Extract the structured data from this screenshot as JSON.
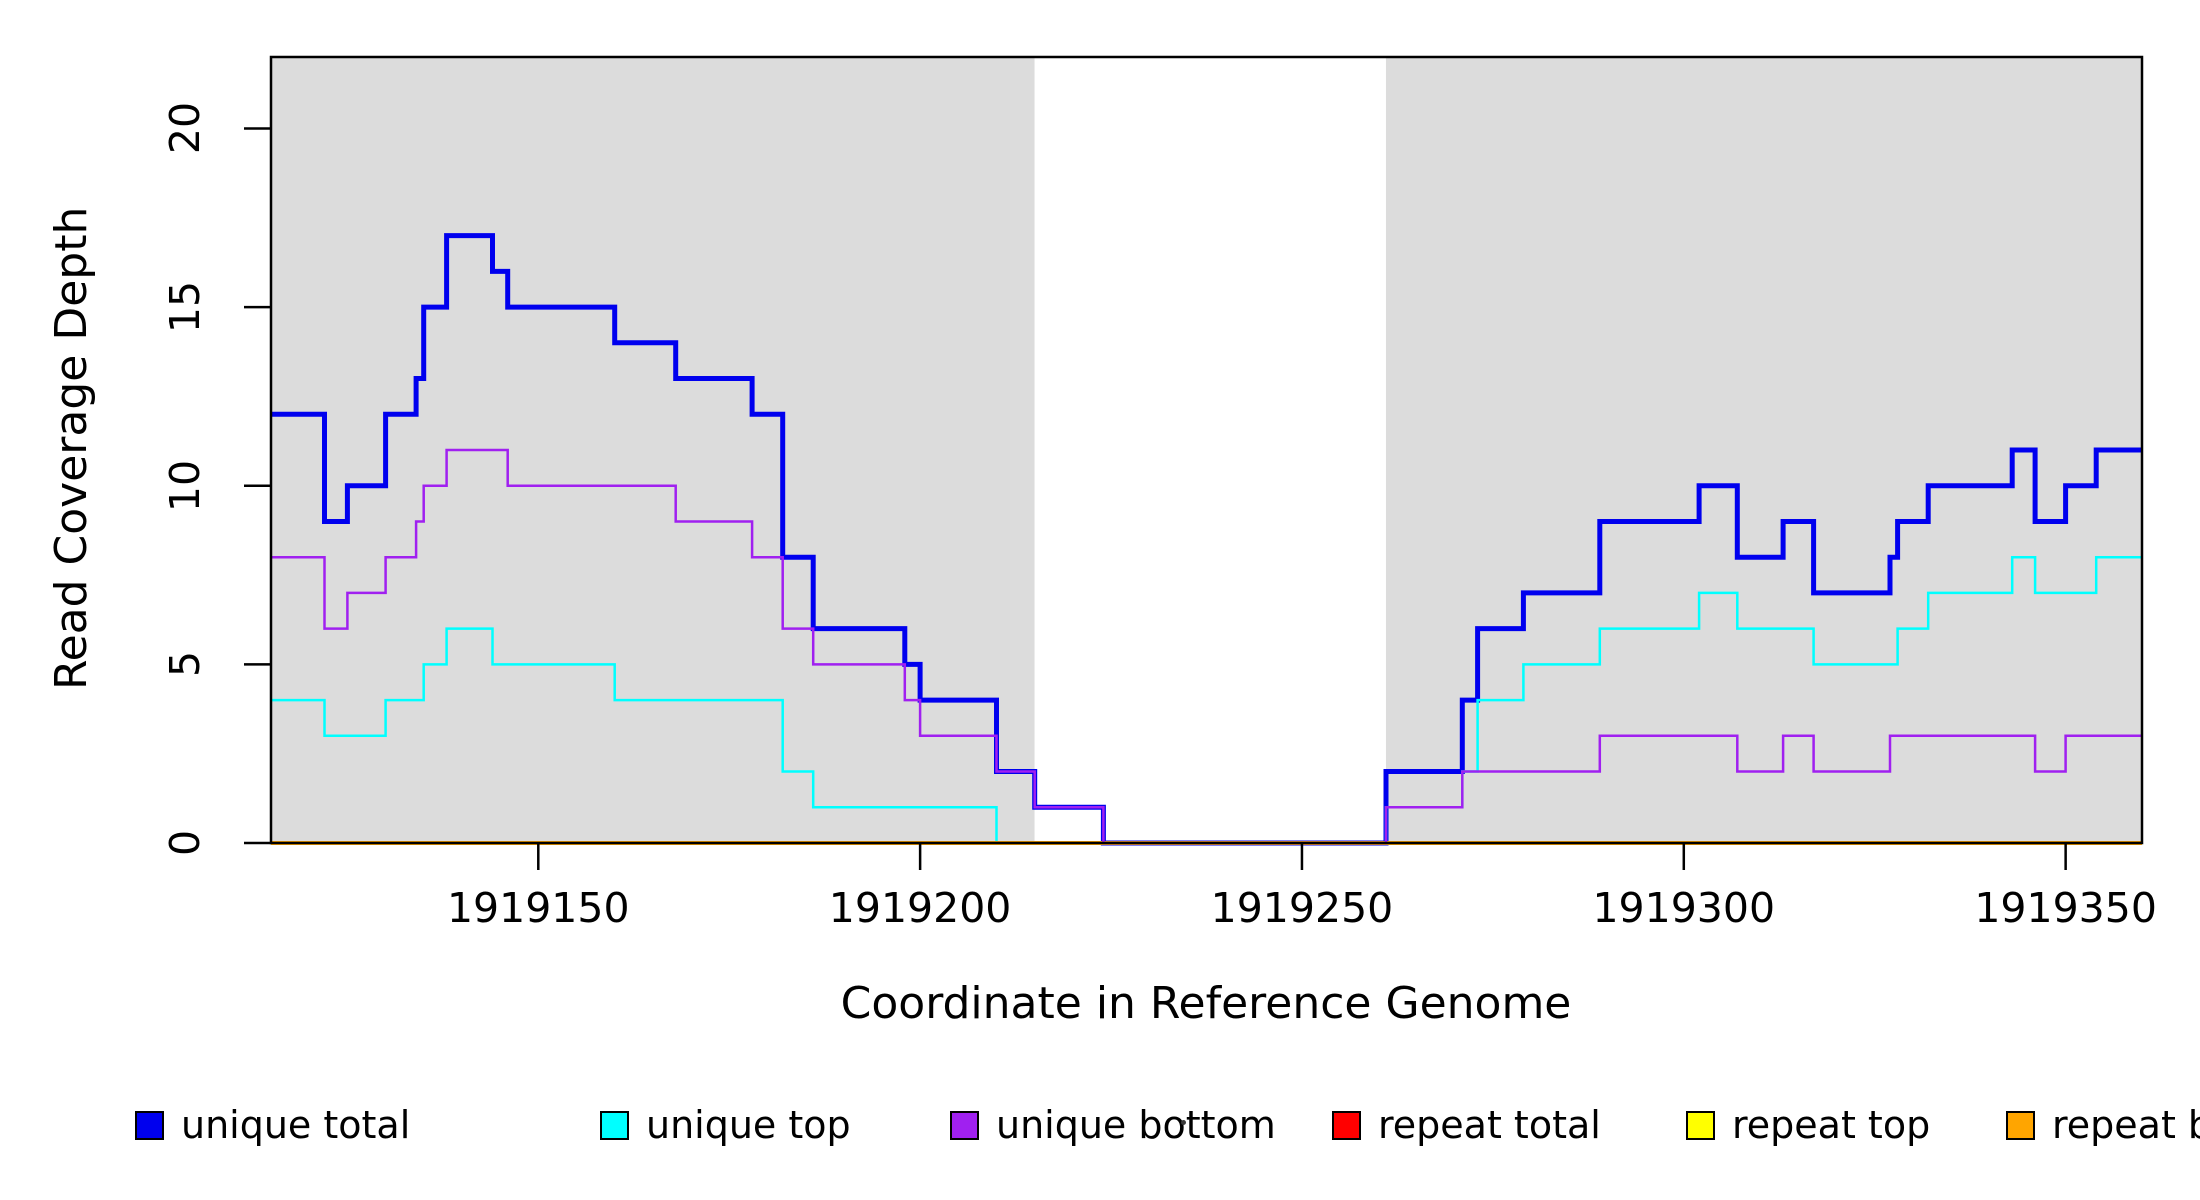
{
  "figure": {
    "y_axis_title": "Read Coverage Depth",
    "x_axis_title": "Coordinate in Reference Genome"
  },
  "chart_data": {
    "type": "step-line",
    "title": "",
    "xlabel": "Coordinate in Reference Genome",
    "ylabel": "Read Coverage Depth",
    "xlim": [
      1919115,
      1919360
    ],
    "ylim": [
      0,
      22
    ],
    "x_ticks": [
      1919150,
      1919200,
      1919250,
      1919300,
      1919350
    ],
    "y_ticks": [
      0,
      5,
      10,
      15,
      20
    ],
    "grid": false,
    "plot_background": "#ffffff",
    "background_bands": [
      {
        "name": "left-gray-band",
        "from": 1919115,
        "to": 1919215,
        "color": "#DCDCDC"
      },
      {
        "name": "white-gap",
        "from": 1919215,
        "to": 1919261,
        "color": "#ffffff"
      },
      {
        "name": "right-gray-band",
        "from": 1919261,
        "to": 1919360,
        "color": "#DCDCDC"
      }
    ],
    "legend_position": "bottom",
    "series": [
      {
        "name": "unique total",
        "color": "#0000EE",
        "line_width": 5,
        "draw_order": 1,
        "steps": [
          [
            1919115,
            12
          ],
          [
            1919122,
            9
          ],
          [
            1919125,
            10
          ],
          [
            1919130,
            12
          ],
          [
            1919134,
            13
          ],
          [
            1919135,
            15
          ],
          [
            1919138,
            17
          ],
          [
            1919144,
            16
          ],
          [
            1919146,
            15
          ],
          [
            1919160,
            14
          ],
          [
            1919168,
            13
          ],
          [
            1919178,
            12
          ],
          [
            1919182,
            8
          ],
          [
            1919186,
            6
          ],
          [
            1919198,
            5
          ],
          [
            1919200,
            4
          ],
          [
            1919210,
            2
          ],
          [
            1919215,
            1
          ],
          [
            1919224,
            0
          ],
          [
            1919261,
            2
          ],
          [
            1919271,
            4
          ],
          [
            1919273,
            6
          ],
          [
            1919279,
            7
          ],
          [
            1919289,
            9
          ],
          [
            1919302,
            10
          ],
          [
            1919307,
            8
          ],
          [
            1919313,
            9
          ],
          [
            1919317,
            7
          ],
          [
            1919327,
            8
          ],
          [
            1919328,
            9
          ],
          [
            1919332,
            10
          ],
          [
            1919343,
            11
          ],
          [
            1919346,
            9
          ],
          [
            1919350,
            10
          ],
          [
            1919354,
            11
          ],
          [
            1919360,
            11
          ]
        ]
      },
      {
        "name": "unique top",
        "color": "#00FFFF",
        "line_width": 2.5,
        "draw_order": 2,
        "steps": [
          [
            1919115,
            4
          ],
          [
            1919122,
            3
          ],
          [
            1919130,
            4
          ],
          [
            1919135,
            5
          ],
          [
            1919138,
            6
          ],
          [
            1919144,
            5
          ],
          [
            1919160,
            4
          ],
          [
            1919182,
            2
          ],
          [
            1919186,
            1
          ],
          [
            1919210,
            0
          ],
          [
            1919261,
            1
          ],
          [
            1919271,
            2
          ],
          [
            1919273,
            4
          ],
          [
            1919279,
            5
          ],
          [
            1919289,
            6
          ],
          [
            1919302,
            7
          ],
          [
            1919307,
            6
          ],
          [
            1919317,
            5
          ],
          [
            1919328,
            6
          ],
          [
            1919332,
            7
          ],
          [
            1919343,
            8
          ],
          [
            1919346,
            7
          ],
          [
            1919354,
            8
          ],
          [
            1919360,
            8
          ]
        ]
      },
      {
        "name": "unique bottom",
        "color": "#A020F0",
        "line_width": 2.5,
        "draw_order": 6,
        "steps": [
          [
            1919115,
            8
          ],
          [
            1919122,
            6
          ],
          [
            1919125,
            7
          ],
          [
            1919130,
            8
          ],
          [
            1919134,
            9
          ],
          [
            1919135,
            10
          ],
          [
            1919138,
            11
          ],
          [
            1919146,
            10
          ],
          [
            1919168,
            9
          ],
          [
            1919178,
            8
          ],
          [
            1919182,
            6
          ],
          [
            1919186,
            5
          ],
          [
            1919198,
            4
          ],
          [
            1919200,
            3
          ],
          [
            1919210,
            2
          ],
          [
            1919215,
            1
          ],
          [
            1919224,
            0
          ],
          [
            1919261,
            1
          ],
          [
            1919271,
            2
          ],
          [
            1919289,
            3
          ],
          [
            1919307,
            2
          ],
          [
            1919313,
            3
          ],
          [
            1919317,
            2
          ],
          [
            1919327,
            3
          ],
          [
            1919346,
            2
          ],
          [
            1919350,
            3
          ],
          [
            1919360,
            3
          ]
        ]
      },
      {
        "name": "repeat total",
        "color": "#FF0000",
        "line_width": 3,
        "draw_order": 3,
        "steps": [
          [
            1919115,
            0
          ],
          [
            1919360,
            0
          ]
        ]
      },
      {
        "name": "repeat top",
        "color": "#FFFF00",
        "line_width": 3,
        "draw_order": 4,
        "steps": [
          [
            1919115,
            0
          ],
          [
            1919360,
            0
          ]
        ]
      },
      {
        "name": "repeat bottom",
        "color": "#FFA500",
        "line_width": 4,
        "draw_order": 5,
        "steps": [
          [
            1919115,
            0
          ],
          [
            1919360,
            0
          ]
        ]
      }
    ],
    "legend": [
      {
        "label": "unique total",
        "color": "#0000EE"
      },
      {
        "label": "unique top",
        "color": "#00FFFF"
      },
      {
        "label": "unique bottom",
        "color": "#A020F0"
      },
      {
        "label": "repeat total",
        "color": "#FF0000"
      },
      {
        "label": "repeat top",
        "color": "#FFFF00"
      },
      {
        "label": "repeat bottom",
        "color": "#FFA500"
      }
    ]
  }
}
